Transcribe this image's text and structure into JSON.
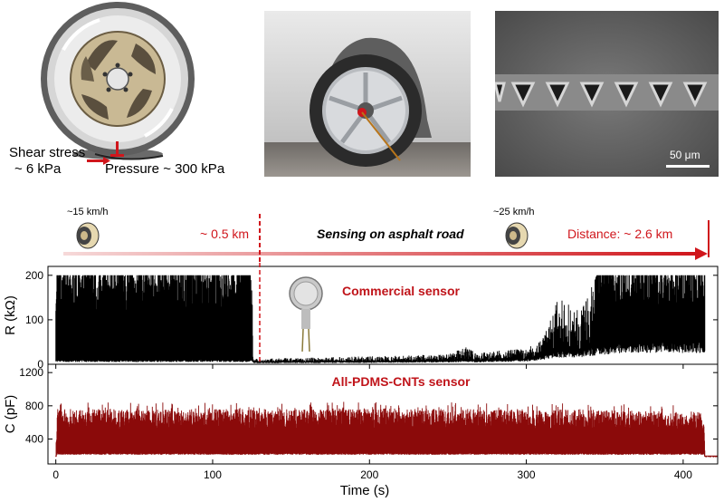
{
  "tire_diagram": {
    "shear_label": "Shear stress",
    "shear_value": "~ 6 kPa",
    "pressure_label": "Pressure ~ 300 kPa"
  },
  "sem_image": {
    "scale_bar": "50 μm"
  },
  "route": {
    "speed1": "~15 km/h",
    "speed2": "~25 km/h",
    "split_distance": "~ 0.5 km",
    "title": "Sensing on asphalt road",
    "total_distance": "Distance: ~ 2.6 km"
  },
  "colors": {
    "accent_red": "#d0161c",
    "dark_red": "#8b0a0a",
    "black": "#000000"
  },
  "chart_data": [
    {
      "type": "area",
      "title": "Commercial sensor",
      "ylabel": "R (kΩ)",
      "ylim": [
        0,
        220
      ],
      "yticks": [
        0,
        100,
        200
      ],
      "xlim": [
        -5,
        422
      ],
      "x": [
        0,
        125,
        126,
        150,
        200,
        250,
        262,
        268,
        280,
        300,
        310,
        320,
        335,
        345,
        360,
        380,
        400,
        414
      ],
      "y_max": [
        200,
        200,
        12,
        14,
        18,
        22,
        40,
        25,
        30,
        35,
        55,
        150,
        120,
        200,
        200,
        200,
        200,
        200
      ],
      "y_min": [
        10,
        10,
        5,
        5,
        6,
        8,
        10,
        8,
        10,
        12,
        20,
        30,
        30,
        40,
        50,
        50,
        50,
        50
      ]
    },
    {
      "type": "area",
      "title": "All-PDMS-CNTs sensor",
      "ylabel": "C (pF)",
      "xlabel": "Time (s)",
      "ylim": [
        100,
        1300
      ],
      "yticks": [
        400,
        800,
        1200
      ],
      "xlim": [
        -5,
        422
      ],
      "xticks": [
        0,
        100,
        200,
        300,
        400
      ],
      "x": [
        0,
        1,
        100,
        200,
        300,
        400,
        413,
        414,
        422
      ],
      "y_max": [
        200,
        760,
        760,
        770,
        760,
        740,
        720,
        200,
        200
      ],
      "y_min": [
        200,
        230,
        230,
        230,
        230,
        230,
        230,
        200,
        200
      ]
    }
  ]
}
